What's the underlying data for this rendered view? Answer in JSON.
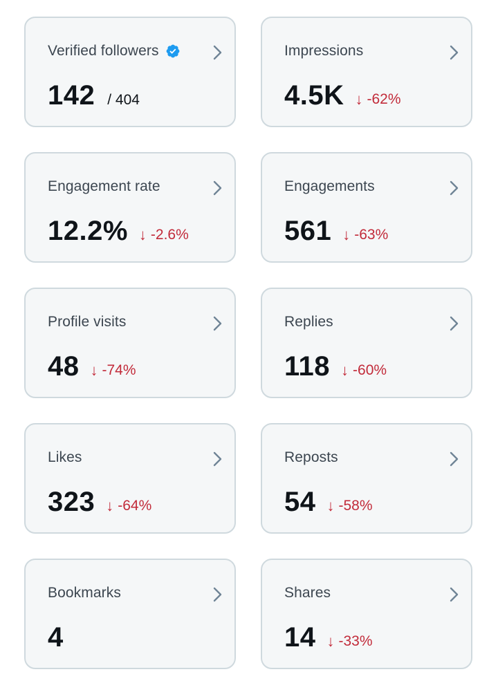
{
  "cards": [
    {
      "label": "Verified followers",
      "value": "142",
      "total": "/ 404",
      "verified_icon": "verified-badge-icon"
    },
    {
      "label": "Impressions",
      "value": "4.5K",
      "change": "-62%"
    },
    {
      "label": "Engagement rate",
      "value": "12.2%",
      "change": "-2.6%"
    },
    {
      "label": "Engagements",
      "value": "561",
      "change": "-63%"
    },
    {
      "label": "Profile visits",
      "value": "48",
      "change": "-74%"
    },
    {
      "label": "Replies",
      "value": "118",
      "change": "-60%"
    },
    {
      "label": "Likes",
      "value": "323",
      "change": "-64%"
    },
    {
      "label": "Reposts",
      "value": "54",
      "change": "-58%"
    },
    {
      "label": "Bookmarks",
      "value": "4"
    },
    {
      "label": "Shares",
      "value": "14",
      "change": "-33%"
    }
  ],
  "colors": {
    "card_bg": "#f5f7f8",
    "card_border": "#cfd9de",
    "label": "#3c4650",
    "value": "#0f1419",
    "negative": "#c22b3a",
    "verified": "#1d9bf0",
    "chevron": "#6f8496"
  },
  "icons": {
    "chevron": "chevron-right-icon",
    "down_arrow": "arrow-down-icon"
  }
}
